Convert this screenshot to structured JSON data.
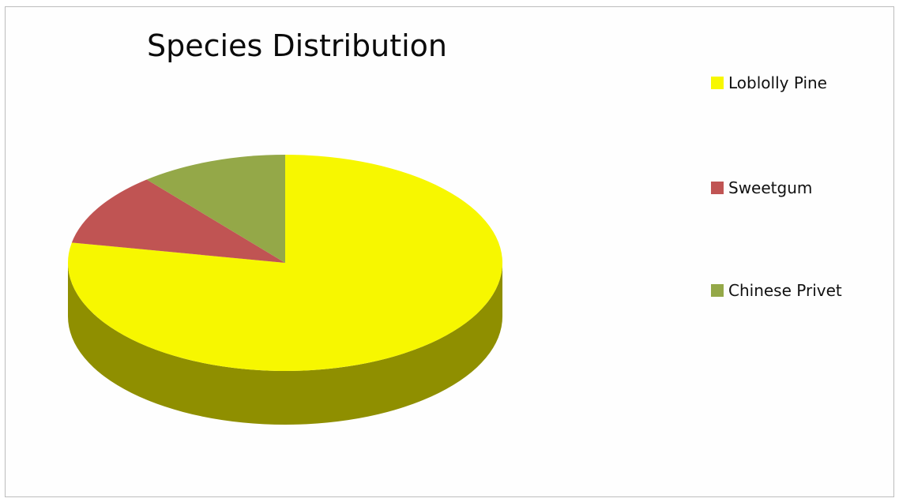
{
  "chart_data": {
    "type": "pie",
    "title": "Species Distribution",
    "three_d": true,
    "legend_position": "right",
    "start_angle_deg": 0,
    "direction": "clockwise",
    "slices": [
      {
        "label": "Loblolly Pine",
        "value": 78,
        "color": "#f7f700"
      },
      {
        "label": "Sweetgum",
        "value": 11,
        "color": "#c05453"
      },
      {
        "label": "Chinese Privet",
        "value": 11,
        "color": "#94a848"
      }
    ]
  }
}
